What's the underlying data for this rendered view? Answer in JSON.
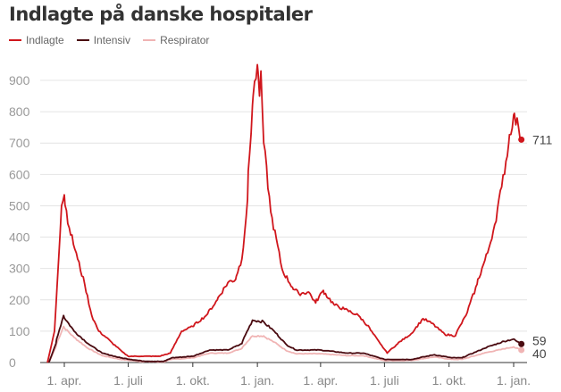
{
  "chart_data": {
    "type": "line",
    "title": "Indlagte på danske hospitaler",
    "xlabel": "",
    "ylabel": "",
    "ylim": [
      0,
      950
    ],
    "yticks": [
      0,
      100,
      200,
      300,
      400,
      500,
      600,
      700,
      800,
      900
    ],
    "xlim": [
      "2020-03-05",
      "2022-01-16"
    ],
    "xticks": [
      {
        "date": "2020-04-01",
        "label": "1. apr."
      },
      {
        "date": "2020-07-01",
        "label": "1. juli"
      },
      {
        "date": "2020-10-01",
        "label": "1. okt."
      },
      {
        "date": "2021-01-01",
        "label": "1. jan."
      },
      {
        "date": "2021-04-01",
        "label": "1. apr."
      },
      {
        "date": "2021-07-01",
        "label": "1. juli"
      },
      {
        "date": "2021-10-01",
        "label": "1. okt."
      },
      {
        "date": "2022-01-01",
        "label": "1. jan."
      }
    ],
    "grid": true,
    "legend": "top-left",
    "series": [
      {
        "name": "Indlagte",
        "color": "#d0161c",
        "end_label": "711",
        "points": [
          [
            "2020-03-08",
            0
          ],
          [
            "2020-03-18",
            100
          ],
          [
            "2020-03-28",
            500
          ],
          [
            "2020-04-01",
            535
          ],
          [
            "2020-04-08",
            430
          ],
          [
            "2020-04-20",
            330
          ],
          [
            "2020-04-30",
            250
          ],
          [
            "2020-05-10",
            150
          ],
          [
            "2020-05-20",
            100
          ],
          [
            "2020-06-05",
            70
          ],
          [
            "2020-06-20",
            40
          ],
          [
            "2020-07-01",
            20
          ],
          [
            "2020-07-20",
            20
          ],
          [
            "2020-08-15",
            20
          ],
          [
            "2020-08-30",
            30
          ],
          [
            "2020-09-15",
            100
          ],
          [
            "2020-10-01",
            115
          ],
          [
            "2020-10-20",
            150
          ],
          [
            "2020-11-05",
            200
          ],
          [
            "2020-11-20",
            255
          ],
          [
            "2020-12-01",
            265
          ],
          [
            "2020-12-10",
            330
          ],
          [
            "2020-12-18",
            520
          ],
          [
            "2020-12-25",
            820
          ],
          [
            "2021-01-01",
            950
          ],
          [
            "2021-01-04",
            850
          ],
          [
            "2021-01-06",
            930
          ],
          [
            "2021-01-10",
            700
          ],
          [
            "2021-01-20",
            480
          ],
          [
            "2021-02-05",
            300
          ],
          [
            "2021-02-20",
            240
          ],
          [
            "2021-03-01",
            220
          ],
          [
            "2021-03-15",
            225
          ],
          [
            "2021-03-25",
            190
          ],
          [
            "2021-04-05",
            230
          ],
          [
            "2021-04-20",
            185
          ],
          [
            "2021-05-05",
            170
          ],
          [
            "2021-05-25",
            150
          ],
          [
            "2021-06-10",
            110
          ],
          [
            "2021-06-25",
            60
          ],
          [
            "2021-07-05",
            30
          ],
          [
            "2021-07-20",
            60
          ],
          [
            "2021-08-10",
            95
          ],
          [
            "2021-08-25",
            140
          ],
          [
            "2021-09-10",
            120
          ],
          [
            "2021-09-25",
            90
          ],
          [
            "2021-10-10",
            85
          ],
          [
            "2021-10-25",
            150
          ],
          [
            "2021-11-10",
            250
          ],
          [
            "2021-11-25",
            350
          ],
          [
            "2021-12-05",
            440
          ],
          [
            "2021-12-15",
            560
          ],
          [
            "2021-12-25",
            700
          ],
          [
            "2022-01-01",
            790
          ],
          [
            "2022-01-08",
            750
          ],
          [
            "2022-01-12",
            711
          ]
        ]
      },
      {
        "name": "Intensiv",
        "color": "#4a0a10",
        "end_label": "59",
        "points": [
          [
            "2020-03-10",
            0
          ],
          [
            "2020-03-20",
            60
          ],
          [
            "2020-03-31",
            150
          ],
          [
            "2020-04-15",
            100
          ],
          [
            "2020-05-05",
            60
          ],
          [
            "2020-05-25",
            30
          ],
          [
            "2020-06-20",
            15
          ],
          [
            "2020-07-20",
            5
          ],
          [
            "2020-08-20",
            3
          ],
          [
            "2020-09-01",
            15
          ],
          [
            "2020-10-01",
            20
          ],
          [
            "2020-10-25",
            40
          ],
          [
            "2020-11-20",
            40
          ],
          [
            "2020-12-10",
            60
          ],
          [
            "2020-12-25",
            135
          ],
          [
            "2021-01-10",
            130
          ],
          [
            "2021-01-25",
            100
          ],
          [
            "2021-02-10",
            60
          ],
          [
            "2021-02-25",
            40
          ],
          [
            "2021-04-01",
            40
          ],
          [
            "2021-05-10",
            30
          ],
          [
            "2021-06-01",
            30
          ],
          [
            "2021-07-01",
            10
          ],
          [
            "2021-08-10",
            10
          ],
          [
            "2021-09-10",
            25
          ],
          [
            "2021-10-05",
            15
          ],
          [
            "2021-10-20",
            15
          ],
          [
            "2021-11-20",
            45
          ],
          [
            "2021-12-15",
            65
          ],
          [
            "2022-01-01",
            75
          ],
          [
            "2022-01-12",
            59
          ]
        ]
      },
      {
        "name": "Respirator",
        "color": "#f0b4b4",
        "end_label": "40",
        "points": [
          [
            "2020-03-10",
            0
          ],
          [
            "2020-03-20",
            50
          ],
          [
            "2020-03-31",
            115
          ],
          [
            "2020-04-15",
            80
          ],
          [
            "2020-05-05",
            45
          ],
          [
            "2020-05-25",
            22
          ],
          [
            "2020-06-20",
            10
          ],
          [
            "2020-07-20",
            3
          ],
          [
            "2020-08-20",
            2
          ],
          [
            "2020-09-01",
            10
          ],
          [
            "2020-10-01",
            15
          ],
          [
            "2020-10-25",
            30
          ],
          [
            "2020-11-20",
            30
          ],
          [
            "2020-12-10",
            45
          ],
          [
            "2020-12-25",
            85
          ],
          [
            "2021-01-10",
            85
          ],
          [
            "2021-01-25",
            65
          ],
          [
            "2021-02-10",
            40
          ],
          [
            "2021-02-25",
            28
          ],
          [
            "2021-04-01",
            28
          ],
          [
            "2021-05-10",
            22
          ],
          [
            "2021-06-01",
            22
          ],
          [
            "2021-07-01",
            6
          ],
          [
            "2021-08-10",
            7
          ],
          [
            "2021-09-10",
            18
          ],
          [
            "2021-10-05",
            10
          ],
          [
            "2021-10-20",
            10
          ],
          [
            "2021-11-20",
            30
          ],
          [
            "2021-12-15",
            42
          ],
          [
            "2022-01-01",
            50
          ],
          [
            "2022-01-12",
            40
          ]
        ]
      }
    ]
  }
}
